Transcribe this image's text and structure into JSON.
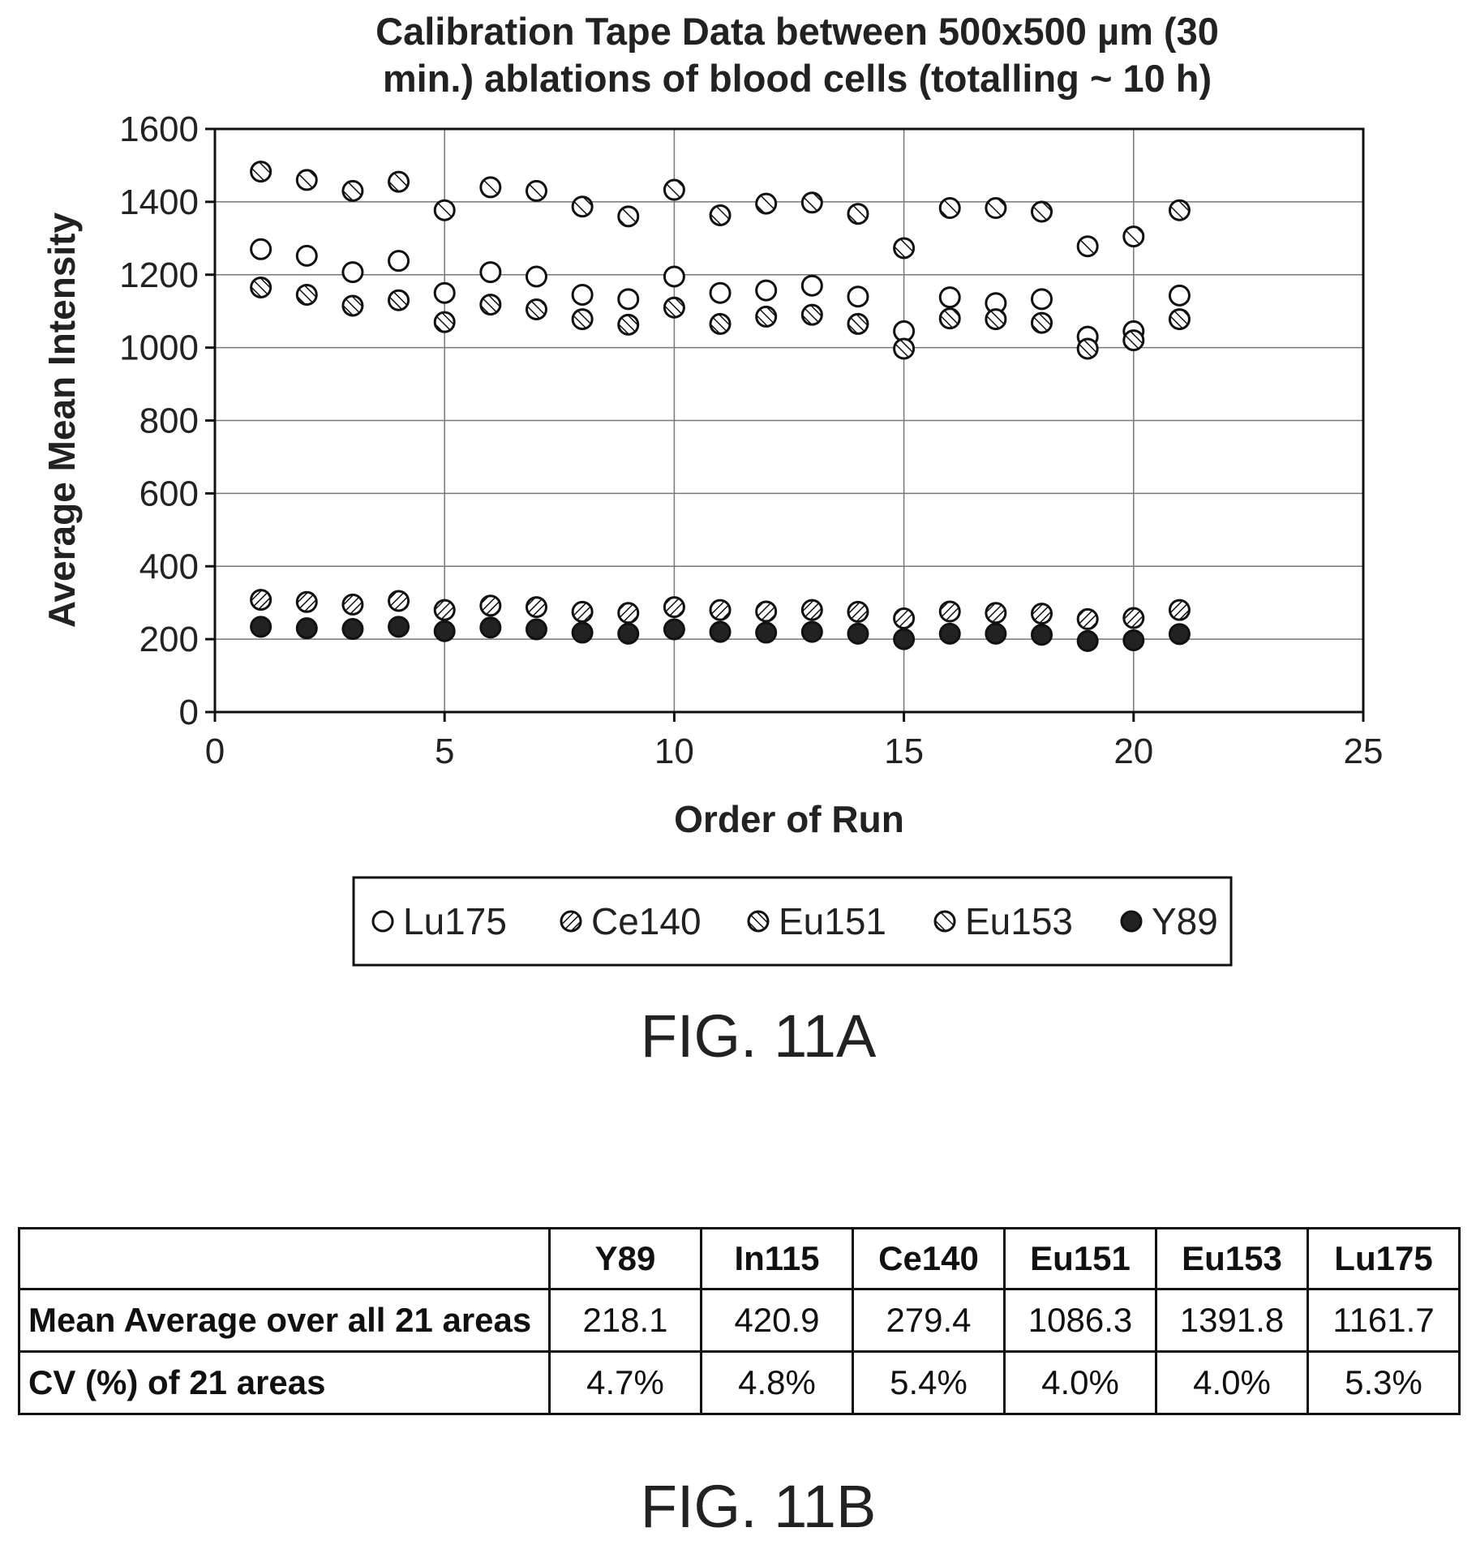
{
  "chart_data": {
    "type": "scatter",
    "title_lines": [
      "Calibration Tape Data between 500x500 µm (30",
      "min.) ablations of blood cells (totalling ~ 10 h)"
    ],
    "xlabel": "Order of Run",
    "ylabel": "Average Mean Intensity",
    "xlim": [
      0,
      25
    ],
    "ylim": [
      0,
      1600
    ],
    "x_ticks": [
      0,
      5,
      10,
      15,
      20,
      25
    ],
    "y_ticks": [
      0,
      200,
      400,
      600,
      800,
      1000,
      1200,
      1400,
      1600
    ],
    "grid": true,
    "legend_position": "bottom",
    "x": [
      1,
      2,
      3,
      4,
      5,
      6,
      7,
      8,
      9,
      10,
      11,
      12,
      13,
      14,
      15,
      16,
      17,
      18,
      19,
      20,
      21
    ],
    "series": [
      {
        "name": "Lu175",
        "marker": "open",
        "values": [
          1270,
          1252,
          1207,
          1238,
          1150,
          1207,
          1195,
          1145,
          1133,
          1195,
          1150,
          1157,
          1170,
          1140,
          1045,
          1138,
          1122,
          1133,
          1030,
          1045,
          1143
        ]
      },
      {
        "name": "Ce140",
        "marker": "hatch-dense",
        "values": [
          308,
          302,
          295,
          305,
          280,
          292,
          288,
          275,
          272,
          288,
          280,
          276,
          280,
          275,
          257,
          276,
          272,
          270,
          255,
          258,
          280
        ]
      },
      {
        "name": "Eu151",
        "marker": "hatch-medium",
        "values": [
          1165,
          1145,
          1115,
          1130,
          1070,
          1118,
          1105,
          1078,
          1063,
          1110,
          1065,
          1085,
          1090,
          1065,
          997,
          1080,
          1078,
          1068,
          997,
          1020,
          1078
        ]
      },
      {
        "name": "Eu153",
        "marker": "hatch-sparse",
        "values": [
          1483,
          1460,
          1430,
          1455,
          1377,
          1440,
          1430,
          1387,
          1360,
          1433,
          1363,
          1395,
          1398,
          1367,
          1273,
          1383,
          1383,
          1373,
          1278,
          1305,
          1377
        ]
      },
      {
        "name": "Y89",
        "marker": "filled",
        "values": [
          234,
          230,
          228,
          234,
          222,
          232,
          227,
          218,
          215,
          227,
          220,
          218,
          220,
          215,
          200,
          215,
          215,
          212,
          195,
          197,
          214
        ]
      }
    ]
  },
  "figure_labels": {
    "fig_a": "FIG. 11A",
    "fig_b": "FIG. 11B"
  },
  "stats_table": {
    "columns": [
      "",
      "Y89",
      "In115",
      "Ce140",
      "Eu151",
      "Eu153",
      "Lu175"
    ],
    "rows": [
      {
        "label": "Mean Average over all 21 areas",
        "values": [
          "218.1",
          "420.9",
          "279.4",
          "1086.3",
          "1391.8",
          "1161.7"
        ]
      },
      {
        "label": "CV (%) of 21 areas",
        "values": [
          "4.7%",
          "4.8%",
          "5.4%",
          "4.0%",
          "4.0%",
          "5.3%"
        ]
      }
    ]
  }
}
